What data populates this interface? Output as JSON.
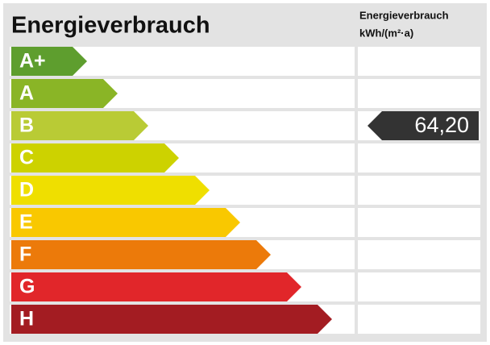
{
  "header": {
    "title": "Energieverbrauch",
    "column_title": "Energieverbrauch",
    "column_unit": "kWh/(m²·a)"
  },
  "rows": [
    {
      "label": "A+",
      "color": "#5e9e2e"
    },
    {
      "label": "A",
      "color": "#8ab526"
    },
    {
      "label": "B",
      "color": "#b9cb35",
      "value": "64,20"
    },
    {
      "label": "C",
      "color": "#cdd200"
    },
    {
      "label": "D",
      "color": "#efdf00"
    },
    {
      "label": "E",
      "color": "#f9c800"
    },
    {
      "label": "F",
      "color": "#ec7a0a"
    },
    {
      "label": "G",
      "color": "#e1262a"
    },
    {
      "label": "H",
      "color": "#a31c22"
    }
  ]
}
